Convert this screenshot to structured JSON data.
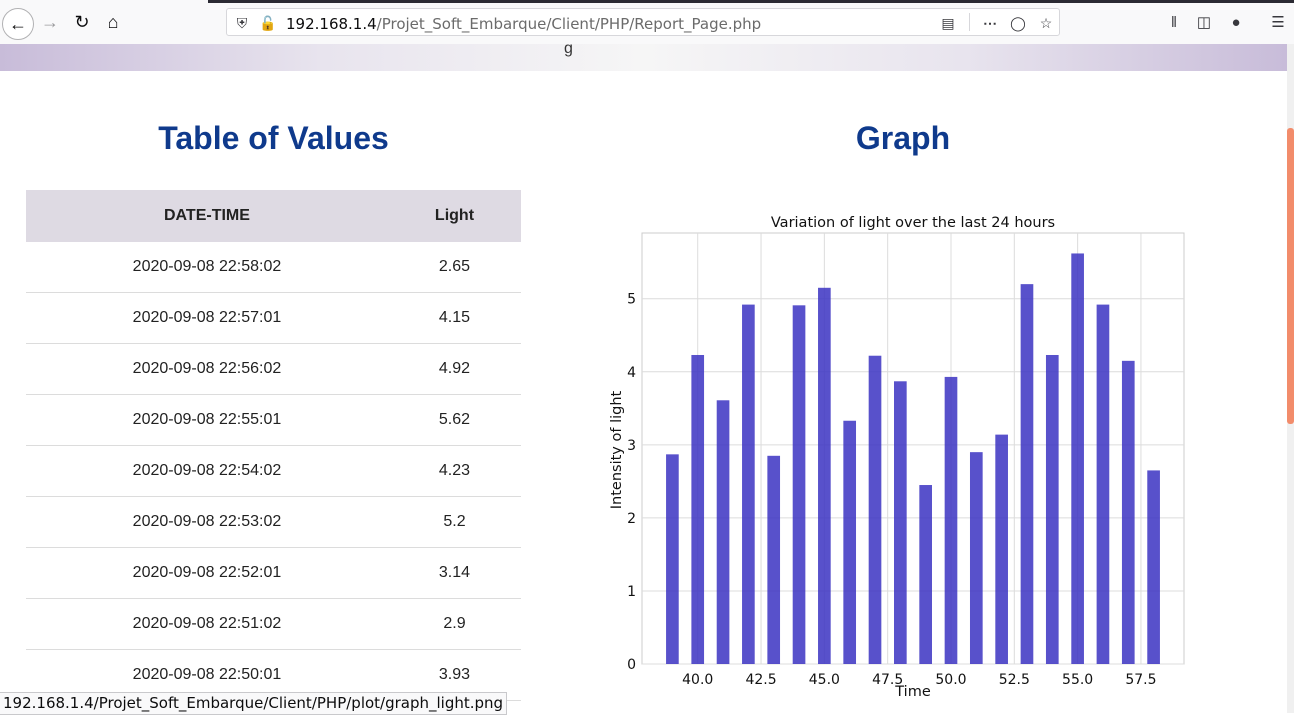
{
  "browser": {
    "url_host": "192.168.1.4",
    "url_path": "/Projet_Soft_Embarque/Client/PHP/Report_Page.php",
    "status_url": "192.168.1.4/Projet_Soft_Embarque/Client/PHP/plot/graph_light.png",
    "icons": [
      "back-arrow-icon",
      "forward-arrow-icon",
      "reload-icon",
      "home-icon",
      "shield-icon",
      "insecure-lock-icon",
      "reader-view-icon",
      "more-icon",
      "pocket-icon",
      "bookmark-star-icon",
      "library-icon",
      "sidebar-icon",
      "account-icon",
      "menu-icon"
    ]
  },
  "page": {
    "header_fragment": "g",
    "table_title": "Table of Values",
    "graph_title": "Graph",
    "table": {
      "headers": [
        "DATE-TIME",
        "Light"
      ],
      "rows": [
        [
          "2020-09-08 22:58:02",
          "2.65"
        ],
        [
          "2020-09-08 22:57:01",
          "4.15"
        ],
        [
          "2020-09-08 22:56:02",
          "4.92"
        ],
        [
          "2020-09-08 22:55:01",
          "5.62"
        ],
        [
          "2020-09-08 22:54:02",
          "4.23"
        ],
        [
          "2020-09-08 22:53:02",
          "5.2"
        ],
        [
          "2020-09-08 22:52:01",
          "3.14"
        ],
        [
          "2020-09-08 22:51:02",
          "2.9"
        ],
        [
          "2020-09-08 22:50:01",
          "3.93"
        ]
      ]
    }
  },
  "colors": {
    "title": "#0f3a8c",
    "bar": "#3b32c2",
    "accent_scroll": "#f28c6b"
  },
  "chart_data": {
    "type": "bar",
    "title": "Variation of light over the last 24 hours",
    "xlabel": "Time",
    "ylabel": "Intensity of light",
    "x": [
      39,
      40,
      41,
      42,
      43,
      44,
      45,
      46,
      47,
      48,
      49,
      50,
      51,
      52,
      53,
      54,
      55,
      56,
      57,
      58
    ],
    "values": [
      2.87,
      4.23,
      3.61,
      4.92,
      2.85,
      4.91,
      5.15,
      3.33,
      4.22,
      3.87,
      2.45,
      3.93,
      2.9,
      3.14,
      5.2,
      4.23,
      5.62,
      4.92,
      4.15,
      2.65
    ],
    "xticks": [
      "40.0",
      "42.5",
      "45.0",
      "47.5",
      "50.0",
      "52.5",
      "55.0",
      "57.5"
    ],
    "xtick_values": [
      40,
      42.5,
      45,
      47.5,
      50,
      52.5,
      55,
      57.5
    ],
    "yticks": [
      "0",
      "1",
      "2",
      "3",
      "4",
      "5"
    ],
    "xlim": [
      37.8,
      59.2
    ],
    "ylim": [
      0,
      5.9
    ],
    "grid": true
  }
}
